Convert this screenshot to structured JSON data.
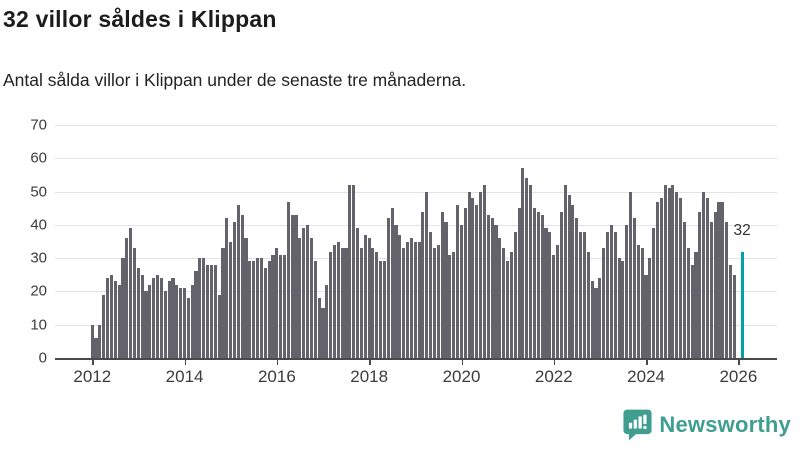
{
  "header": {
    "title": "32 villor såldes i Klippan",
    "subtitle": "Antal sålda villor i Klippan under de senaste tre månaderna."
  },
  "chart_data": {
    "type": "bar",
    "title": "32 villor såldes i Klippan",
    "subtitle": "Antal sålda villor i Klippan under de senaste tre månaderna.",
    "x_start": "2012-01",
    "x_interval": "month",
    "x_tick_labels": [
      "2012",
      "2014",
      "2016",
      "2018",
      "2020",
      "2022",
      "2024",
      "2026"
    ],
    "y_ticks": [
      0,
      10,
      20,
      30,
      40,
      50,
      60,
      70
    ],
    "ylim": [
      0,
      70
    ],
    "grid": true,
    "bar_color": "#64636c",
    "values": [
      10,
      6,
      10,
      19,
      24,
      25,
      23,
      22,
      30,
      36,
      39,
      33,
      27,
      25,
      20,
      22,
      24,
      25,
      24,
      20,
      23,
      24,
      22,
      21,
      21,
      18,
      22,
      26,
      30,
      30,
      28,
      28,
      28,
      19,
      33,
      42,
      35,
      41,
      46,
      43,
      36,
      29,
      29,
      30,
      30,
      27,
      29,
      31,
      33,
      31,
      31,
      47,
      43,
      43,
      36,
      39,
      40,
      36,
      29,
      18,
      15,
      22,
      32,
      34,
      35,
      33,
      33,
      52,
      52,
      39,
      33,
      37,
      36,
      33,
      32,
      29,
      29,
      42,
      45,
      40,
      37,
      33,
      35,
      36,
      35,
      35,
      44,
      50,
      38,
      33,
      34,
      44,
      41,
      31,
      32,
      46,
      40,
      45,
      50,
      48,
      46,
      50,
      52,
      43,
      42,
      40,
      36,
      33,
      29,
      32,
      38,
      45,
      57,
      54,
      52,
      45,
      44,
      43,
      39,
      38,
      31,
      34,
      44,
      52,
      49,
      46,
      42,
      38,
      38,
      32,
      23,
      21,
      24,
      33,
      38,
      40,
      38,
      30,
      29,
      40,
      50,
      42,
      34,
      33,
      25,
      30,
      39,
      47,
      48,
      52,
      51,
      52,
      50,
      48,
      41,
      33,
      28,
      32,
      44,
      50,
      48,
      41,
      44,
      47,
      47,
      41,
      28,
      25,
      0,
      32
    ],
    "highlight": {
      "index": 169,
      "value": 32,
      "label": "32",
      "color": "#00a2a5"
    }
  },
  "footer": {
    "brand": "Newsworthy",
    "brand_color": "#3f9e8f",
    "logo_icon": "newsworthy-bubble-chart-icon"
  }
}
